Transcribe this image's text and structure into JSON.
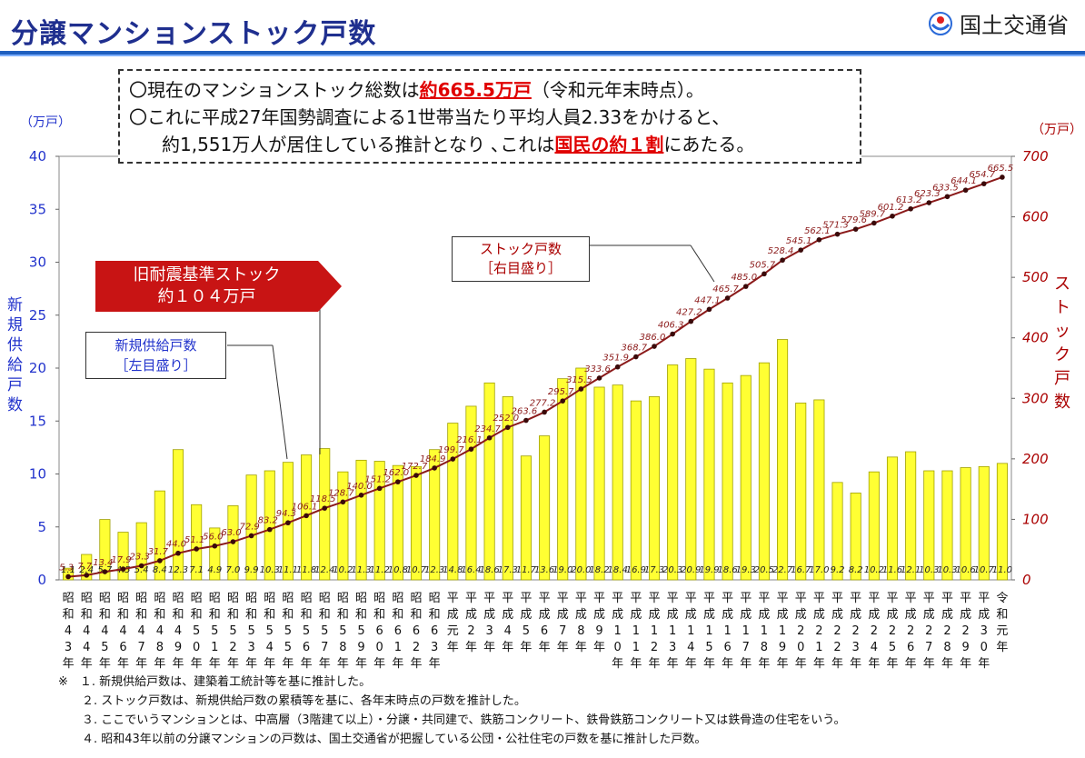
{
  "header": {
    "title": "分譲マンションストック戸数",
    "org": "国土交通省"
  },
  "infobox": {
    "line1_pre": "〇現在のマンションストック総数は",
    "line1_hl": "約665.5万戸",
    "line1_post": "（令和元年末時点）。",
    "line2": "〇これに平成27年国勢調査による1世帯当たり平均人員2.33をかけると、",
    "line3_pre": "約1,551万人が居住している推計となり ､これは",
    "line3_hl": "国民の約１割",
    "line3_post": "にあたる。"
  },
  "axes": {
    "left_unit": "（万戸）",
    "right_unit": "（万戸）",
    "left_label": "新規供給戸数",
    "right_label": "ストック戸数"
  },
  "callouts": {
    "old_standard_line1": "旧耐震基準ストック",
    "old_standard_line2": "約１０４万戸",
    "supply_line1": "新規供給戸数",
    "supply_line2": "［左目盛り］",
    "stock_line1": "ストック戸数",
    "stock_line2": "［右目盛り］"
  },
  "notes": [
    "※　１. 新規供給戸数は、建築着工統計等を基に推計した。",
    "２. ストック戸数は、新規供給戸数の累積等を基に、各年末時点の戸数を推計した。",
    "３. ここでいうマンションとは、中高層（3階建て以上）・分譲・共同建で、鉄筋コンクリート、鉄骨鉄筋コンクリート又は鉄骨造の住宅をいう。",
    "４. 昭和43年以前の分譲マンションの戸数は、国土交通省が把握している公団・公社住宅の戸数を基に推計した戸数。"
  ],
  "colors": {
    "bar": "#ffff33",
    "bar_stroke": "#a0a000",
    "line": "#8b1a1a",
    "left_axis": "#2233cc",
    "right_axis": "#aa0000",
    "title": "#1f2f8f"
  },
  "chart_data": {
    "type": "bar",
    "categories": [
      "昭和43年",
      "昭和44年",
      "昭和45年",
      "昭和46年",
      "昭和47年",
      "昭和48年",
      "昭和49年",
      "昭和50年",
      "昭和51年",
      "昭和52年",
      "昭和53年",
      "昭和54年",
      "昭和55年",
      "昭和56年",
      "昭和57年",
      "昭和58年",
      "昭和59年",
      "昭和60年",
      "昭和61年",
      "昭和62年",
      "昭和63年",
      "平成元年",
      "平成2年",
      "平成3年",
      "平成4年",
      "平成5年",
      "平成6年",
      "平成7年",
      "平成8年",
      "平成9年",
      "平成10年",
      "平成11年",
      "平成12年",
      "平成13年",
      "平成14年",
      "平成15年",
      "平成16年",
      "平成17年",
      "平成18年",
      "平成19年",
      "平成20年",
      "平成21年",
      "平成22年",
      "平成23年",
      "平成24年",
      "平成25年",
      "平成26年",
      "平成27年",
      "平成28年",
      "平成29年",
      "平成30年",
      "令和元年"
    ],
    "category_labels": [
      "昭和43年",
      "昭和44年",
      "昭和45年",
      "昭和46年",
      "昭和47年",
      "昭和48年",
      "昭和49年",
      "昭和50年",
      "昭和51年",
      "昭和52年",
      "昭和53年",
      "昭和54年",
      "昭和55年",
      "昭和56年",
      "昭和57年",
      "昭和58年",
      "昭和59年",
      "昭和60年",
      "昭和61年",
      "昭和62年",
      "昭和63年",
      "平成元年",
      "平成2年",
      "平成3年",
      "平成4年",
      "平成5年",
      "平成6年",
      "平成7年",
      "平成8年",
      "平成9年",
      "平成10年",
      "平成11年",
      "平成12年",
      "平成13年",
      "平成14年",
      "平成15年",
      "平成16年",
      "平成17年",
      "平成18年",
      "平成19年",
      "平成20年",
      "平成21年",
      "平成22年",
      "平成23年",
      "平成24年",
      "平成25年",
      "平成26年",
      "平成27年",
      "平成28年",
      "平成29年",
      "平成30年",
      "令和元年"
    ],
    "series": [
      {
        "name": "新規供給戸数",
        "axis": "left",
        "values": [
          1.1,
          2.4,
          5.7,
          4.5,
          5.4,
          8.4,
          12.3,
          7.1,
          4.9,
          7.0,
          9.9,
          10.3,
          11.1,
          11.8,
          12.4,
          10.2,
          11.3,
          11.2,
          10.8,
          10.7,
          12.3,
          14.8,
          16.4,
          18.6,
          17.3,
          11.7,
          13.6,
          19.0,
          20.0,
          18.2,
          18.4,
          16.9,
          17.3,
          20.3,
          20.9,
          19.9,
          18.6,
          19.3,
          20.5,
          22.7,
          16.7,
          17.0,
          9.2,
          8.2,
          10.2,
          11.6,
          12.1,
          10.3,
          10.3,
          10.6,
          10.7,
          11.0
        ],
        "labels": [
          "1.1",
          "2.4",
          "5.7",
          "4.5",
          "5.4",
          "8.4",
          "12.3",
          "7.1",
          "4.9",
          "7.0",
          "9.9",
          "10.3",
          "11.1",
          "11.8",
          "12.4",
          "10.2",
          "11.3",
          "11.2",
          "10.8",
          "10.7",
          "12.3",
          "14.8",
          "16.4",
          "18.6",
          "17.3",
          "11.7",
          "13.6",
          "19.0",
          "20.0",
          "18.2",
          "18.4",
          "16.9",
          "17.3",
          "20.3",
          "20.9",
          "19.9",
          "18.6",
          "19.3",
          "20.5",
          "22.7",
          "16.7",
          "17.0",
          "9.2",
          "8.2",
          "10.2",
          "11.6",
          "12.1",
          "10.3",
          "10.3",
          "10.6",
          "10.7",
          "11.0"
        ]
      },
      {
        "name": "ストック戸数",
        "axis": "right",
        "values": [
          5.3,
          7.7,
          13.4,
          17.9,
          23.3,
          31.7,
          44.0,
          51.1,
          56.0,
          63.0,
          72.9,
          83.2,
          94.3,
          106.1,
          118.5,
          128.7,
          140.0,
          151.2,
          162.0,
          172.7,
          184.9,
          199.7,
          216.1,
          234.7,
          252.0,
          263.6,
          277.2,
          295.7,
          315.5,
          333.6,
          351.9,
          368.7,
          386.0,
          406.3,
          427.2,
          447.1,
          465.7,
          485.0,
          505.7,
          528.4,
          545.1,
          562.1,
          571.3,
          579.6,
          589.7,
          601.2,
          613.2,
          623.3,
          633.5,
          644.1,
          654.7,
          665.5
        ],
        "labels": [
          "5.3",
          "7.7",
          "13.4",
          "17.9",
          "23.3",
          "31.7",
          "44.0",
          "51.1",
          "56.0",
          "63.0",
          "72.9",
          "83.2",
          "94.3",
          "106.1",
          "118.5",
          "128.7",
          "140.0",
          "151.2",
          "162.0",
          "172.7",
          "184.9",
          "199.7",
          "216.1",
          "234.7",
          "252.0",
          "263.6",
          "277.2",
          "295.7",
          "315.5",
          "333.6",
          "351.9",
          "368.7",
          "386.0",
          "406.3",
          "427.2",
          "447.1",
          "465.7",
          "485.0",
          "505.7",
          "528.4",
          "545.1",
          "562.1",
          "571.3",
          "579.6",
          "589.7",
          "601.2",
          "613.2",
          "623.3",
          "633.5",
          "644.1",
          "654.7",
          "665.5"
        ]
      }
    ],
    "ylim_left": [
      0,
      40
    ],
    "ylim_right": [
      0,
      700
    ],
    "yticks_left": [
      "0",
      "5",
      "10",
      "15",
      "20",
      "25",
      "30",
      "35",
      "40"
    ],
    "yticks_right": [
      "0",
      "100",
      "200",
      "300",
      "400",
      "500",
      "600",
      "700"
    ],
    "grid": false
  }
}
